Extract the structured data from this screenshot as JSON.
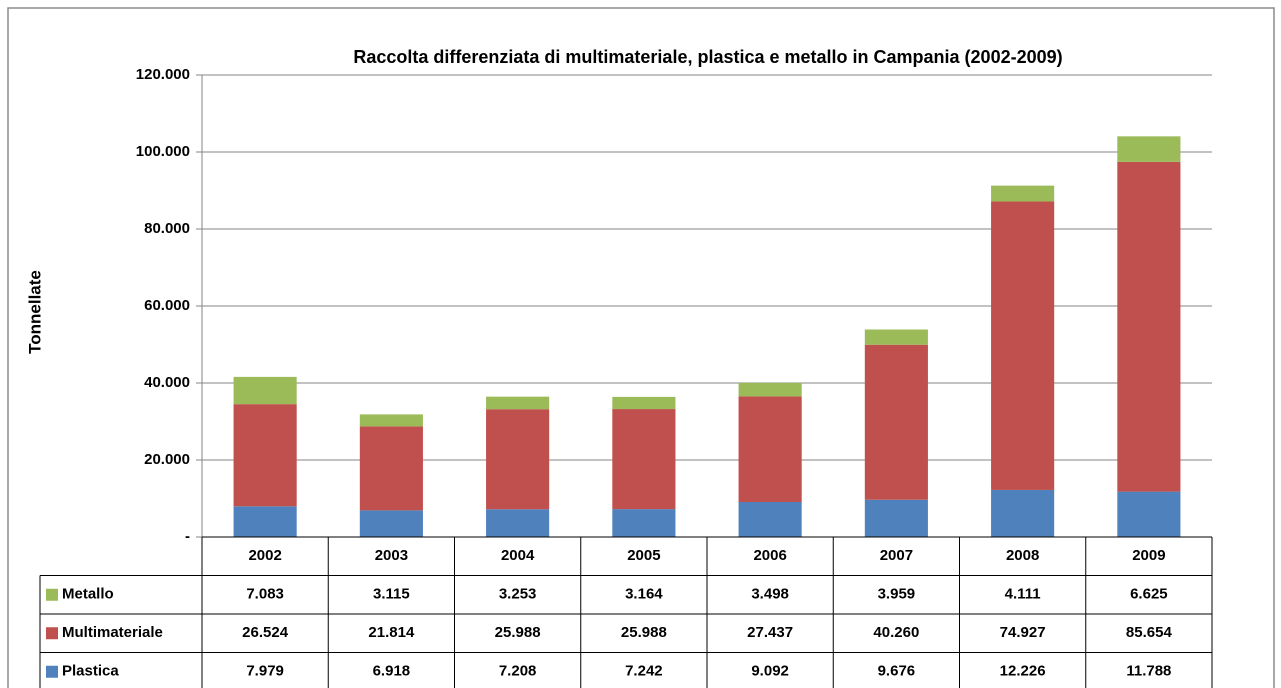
{
  "chart_data": {
    "type": "stacked_bar",
    "title": "Raccolta differenziata di multimateriale, plastica e metallo in Campania (2002-2009)",
    "y_label": "Tonnellate",
    "categories": [
      "2002",
      "2003",
      "2004",
      "2005",
      "2006",
      "2007",
      "2008",
      "2009"
    ],
    "series": [
      {
        "name": "Metallo",
        "color": "#9bbb59",
        "values": [
          7083,
          3115,
          3253,
          3164,
          3498,
          3959,
          4111,
          6625
        ],
        "value_labels": [
          "7.083",
          "3.115",
          "3.253",
          "3.164",
          "3.498",
          "3.959",
          "4.111",
          "6.625"
        ]
      },
      {
        "name": "Multimateriale",
        "color": "#c0504d",
        "values": [
          26524,
          21814,
          25988,
          25988,
          27437,
          40260,
          74927,
          85654
        ],
        "value_labels": [
          "26.524",
          "21.814",
          "25.988",
          "25.988",
          "27.437",
          "40.260",
          "74.927",
          "85.654"
        ]
      },
      {
        "name": "Plastica",
        "color": "#4f81bd",
        "values": [
          7979,
          6918,
          7208,
          7242,
          9092,
          9676,
          12226,
          11788
        ],
        "value_labels": [
          "7.979",
          "6.918",
          "7.208",
          "7.242",
          "9.092",
          "9.676",
          "12.226",
          "11.788"
        ]
      }
    ],
    "ylim": [
      0,
      120000
    ],
    "yticks": [
      {
        "value": 0,
        "label": "-"
      },
      {
        "value": 20000,
        "label": "20.000"
      },
      {
        "value": 40000,
        "label": "40.000"
      },
      {
        "value": 60000,
        "label": "60.000"
      },
      {
        "value": 80000,
        "label": "80.000"
      },
      {
        "value": 100000,
        "label": "100.000"
      },
      {
        "value": 120000,
        "label": "120.000"
      }
    ],
    "grid": true
  }
}
